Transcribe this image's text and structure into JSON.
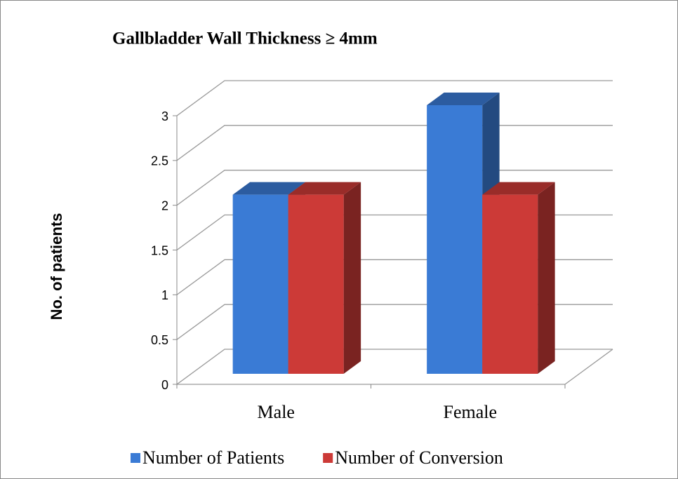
{
  "chart_data": {
    "type": "bar",
    "title": "Gallbladder Wall Thickness  ≥ 4mm",
    "y_label": "No. of patients",
    "categories": [
      "Male",
      "Female"
    ],
    "series": [
      {
        "name": "Number of Patients",
        "color": "#3a7bd5",
        "values": [
          2,
          3
        ]
      },
      {
        "name": "Number of Conversion",
        "color": "#cc3a37",
        "values": [
          2,
          2
        ]
      }
    ],
    "ylim": [
      0,
      3
    ],
    "yticks": [
      0,
      0.5,
      1,
      1.5,
      2,
      2.5,
      3
    ],
    "grid": true,
    "legend": "bottom"
  }
}
